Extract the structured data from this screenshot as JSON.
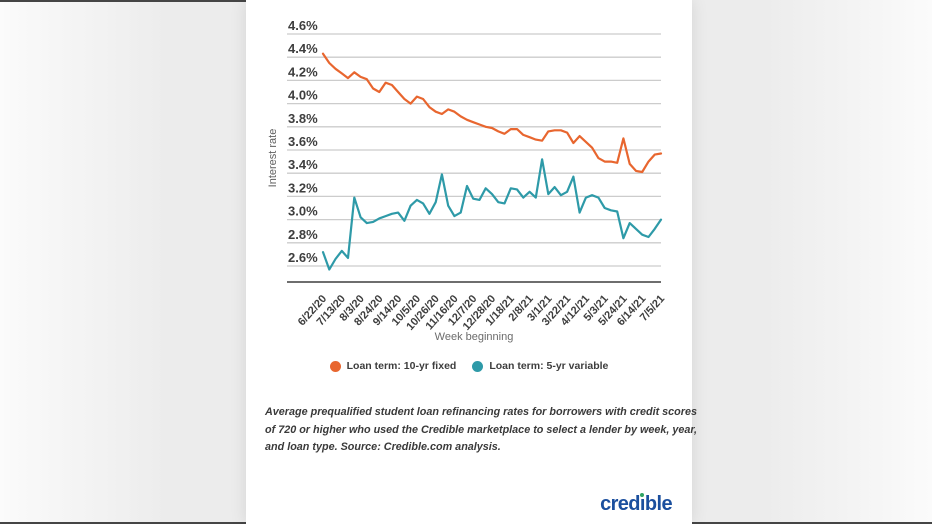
{
  "page": {
    "background_color": "#f0f0f0",
    "card_color": "#ffffff"
  },
  "chart_data": {
    "type": "line",
    "title": "",
    "xlabel": "Week beginning",
    "ylabel": "Interest rate",
    "ylim": [
      2.6,
      4.6
    ],
    "y_tick_step": 0.2,
    "y_tick_format": "0.0%",
    "grid": true,
    "legend_position": "bottom",
    "x_start": "6/22/20",
    "x_end": "7/5/21",
    "x_point_interval": "weekly",
    "x_tick_interval_weeks": 3,
    "x_tick_labels": [
      "6/22/20",
      "7/13/20",
      "8/3/20",
      "8/24/20",
      "9/14/20",
      "10/5/20",
      "10/26/20",
      "11/16/20",
      "12/7/20",
      "12/28/20",
      "1/18/21",
      "2/8/21",
      "3/1/21",
      "3/22/21",
      "4/12/21",
      "5/3/21",
      "5/24/21",
      "6/14/21",
      "7/5/21"
    ],
    "series": [
      {
        "name": "Loan term: 10-yr fixed",
        "color": "#E8662F",
        "values": [
          4.43,
          4.35,
          4.3,
          4.26,
          4.22,
          4.27,
          4.23,
          4.21,
          4.13,
          4.1,
          4.18,
          4.16,
          4.1,
          4.04,
          4.0,
          4.06,
          4.04,
          3.97,
          3.93,
          3.91,
          3.95,
          3.93,
          3.89,
          3.86,
          3.84,
          3.82,
          3.8,
          3.79,
          3.76,
          3.74,
          3.78,
          3.78,
          3.73,
          3.71,
          3.69,
          3.68,
          3.76,
          3.77,
          3.77,
          3.75,
          3.66,
          3.72,
          3.67,
          3.62,
          3.53,
          3.5,
          3.5,
          3.49,
          3.7,
          3.48,
          3.42,
          3.41,
          3.5,
          3.56,
          3.57
        ]
      },
      {
        "name": "Loan term: 5-yr variable",
        "color": "#2E9AA8",
        "values": [
          2.72,
          2.57,
          2.66,
          2.73,
          2.67,
          3.19,
          3.02,
          2.97,
          2.98,
          3.01,
          3.03,
          3.05,
          3.06,
          2.99,
          3.12,
          3.17,
          3.14,
          3.05,
          3.15,
          3.39,
          3.12,
          3.03,
          3.06,
          3.29,
          3.18,
          3.17,
          3.27,
          3.22,
          3.15,
          3.14,
          3.27,
          3.26,
          3.19,
          3.24,
          3.19,
          3.52,
          3.22,
          3.28,
          3.21,
          3.24,
          3.37,
          3.06,
          3.19,
          3.21,
          3.19,
          3.1,
          3.08,
          3.07,
          2.84,
          2.97,
          2.92,
          2.87,
          2.85,
          2.92,
          3.0
        ]
      }
    ],
    "style": {
      "gridline_color": "#cccccc",
      "axis_line_color": "#6e6e6e",
      "tick_label_color": "#3e3e3e",
      "axis_title_color": "#5f5f5f"
    }
  },
  "caption": {
    "lines": [
      "Average prequalified student loan refinancing rates for borrowers with credit scores",
      "of 720 or higher who used the Credible marketplace to select a lender by week, year,",
      "and loan type. Source: Credible.com analysis."
    ]
  },
  "branding": {
    "logo_before_i": "cred",
    "logo_i_glyph": "ı",
    "logo_after_i": "ble",
    "logo_color": "#1B4F9E",
    "logo_i_dot_color": "#2FA463"
  }
}
